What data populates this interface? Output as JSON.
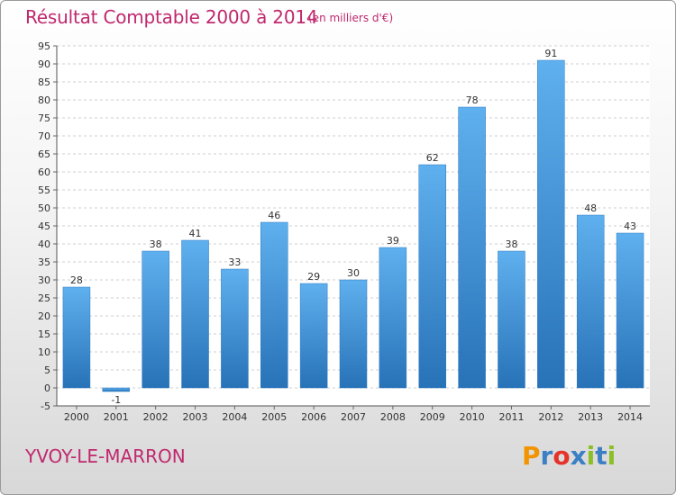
{
  "chart_data": {
    "type": "bar",
    "title": "Résultat Comptable 2000 à 2014",
    "subtitle": "(en milliers d'€)",
    "categories": [
      "2000",
      "2001",
      "2002",
      "2003",
      "2004",
      "2005",
      "2006",
      "2007",
      "2008",
      "2009",
      "2010",
      "2011",
      "2012",
      "2013",
      "2014"
    ],
    "values": [
      28,
      -1,
      38,
      41,
      33,
      46,
      29,
      30,
      39,
      62,
      78,
      38,
      91,
      48,
      43
    ],
    "value_labels": [
      "28",
      "-1",
      "38",
      "41",
      "33",
      "46",
      "29",
      "30",
      "39",
      "62",
      "78",
      "38",
      "91",
      "48",
      "43"
    ],
    "ylim": [
      -5,
      95
    ],
    "yticks": [
      -5,
      0,
      5,
      10,
      15,
      20,
      25,
      30,
      35,
      40,
      45,
      50,
      55,
      60,
      65,
      70,
      75,
      80,
      85,
      90,
      95
    ],
    "ytick_labels": [
      "-5",
      "0",
      "5",
      "10",
      "15",
      "20",
      "25",
      "30",
      "35",
      "40",
      "45",
      "50",
      "55",
      "60",
      "65",
      "70",
      "75",
      "80",
      "85",
      "90",
      "95"
    ],
    "grid": true,
    "bar_color": "#3a8fd6",
    "bar_color_light": "#5fb0ee",
    "bar_color_dark": "#2872b8"
  },
  "commune": "YVOY-LE-MARRON",
  "logo": {
    "letters": [
      "P",
      "r",
      "o",
      "x",
      "i",
      "t",
      "i"
    ],
    "colors": [
      "#f29400",
      "#3b7fc4",
      "#e5332a",
      "#3b7fc4",
      "#8cbf26",
      "#3b7fc4",
      "#8cbf26"
    ]
  }
}
